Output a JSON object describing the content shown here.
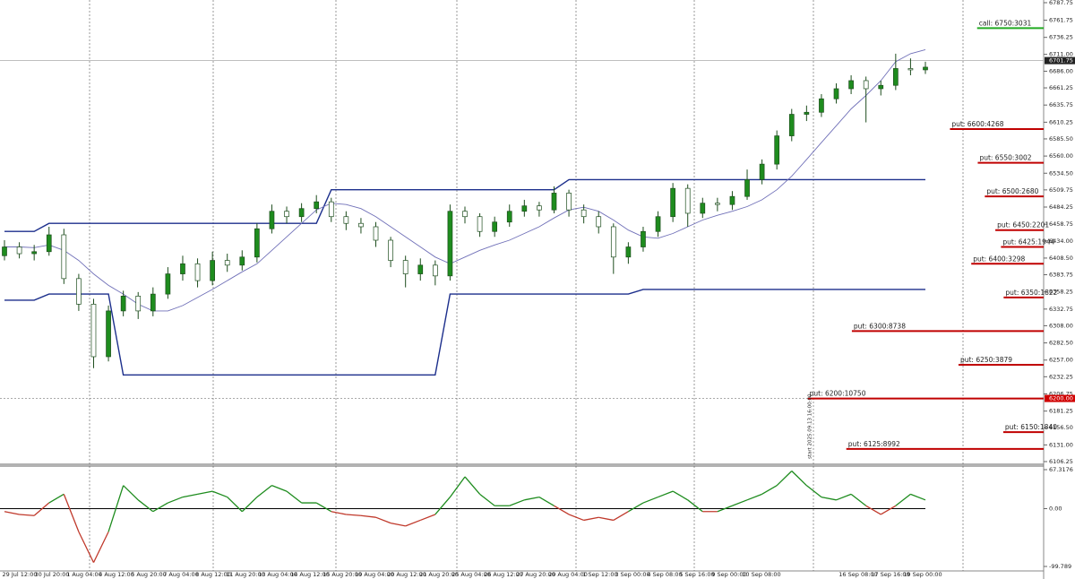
{
  "chart_data": [
    {
      "type": "candlestick",
      "open": [
        6412,
        6425,
        6415,
        6418,
        6443,
        6378,
        6340,
        6262,
        6330,
        6352,
        6330,
        6355,
        6385,
        6400,
        6375,
        6405,
        6398,
        6410,
        6452,
        6478,
        6470,
        6482,
        6492,
        6470,
        6460,
        6455,
        6435,
        6405,
        6385,
        6398,
        6382,
        6478,
        6470,
        6448,
        6462,
        6478,
        6486,
        6480,
        6505,
        6480,
        6470,
        6455,
        6410,
        6425,
        6448,
        6470,
        6512,
        6475,
        6490,
        6488,
        6500,
        6525,
        6548,
        6590,
        6622,
        6625,
        6645,
        6660,
        6672,
        6660,
        6665,
        6690,
        6688
      ],
      "high": [
        6435,
        6432,
        6428,
        6455,
        6452,
        6385,
        6348,
        6338,
        6360,
        6358,
        6365,
        6395,
        6412,
        6408,
        6418,
        6415,
        6420,
        6460,
        6488,
        6485,
        6490,
        6502,
        6498,
        6478,
        6468,
        6462,
        6440,
        6412,
        6408,
        6405,
        6488,
        6485,
        6475,
        6470,
        6488,
        6495,
        6492,
        6515,
        6510,
        6488,
        6478,
        6460,
        6432,
        6455,
        6478,
        6520,
        6518,
        6498,
        6498,
        6508,
        6540,
        6555,
        6598,
        6630,
        6635,
        6652,
        6668,
        6680,
        6678,
        6672,
        6712,
        6705,
        6700
      ],
      "low": [
        6405,
        6408,
        6405,
        6412,
        6370,
        6330,
        6245,
        6255,
        6322,
        6318,
        6322,
        6348,
        6375,
        6365,
        6368,
        6388,
        6390,
        6402,
        6445,
        6460,
        6462,
        6475,
        6462,
        6450,
        6445,
        6425,
        6395,
        6365,
        6375,
        6368,
        6375,
        6460,
        6440,
        6440,
        6455,
        6470,
        6470,
        6475,
        6470,
        6460,
        6445,
        6385,
        6400,
        6418,
        6440,
        6462,
        6455,
        6468,
        6478,
        6480,
        6495,
        6518,
        6540,
        6582,
        6612,
        6618,
        6638,
        6652,
        6610,
        6650,
        6658,
        6680,
        6682
      ],
      "close": [
        6425,
        6415,
        6418,
        6443,
        6378,
        6340,
        6262,
        6330,
        6352,
        6330,
        6355,
        6385,
        6400,
        6375,
        6405,
        6398,
        6410,
        6452,
        6478,
        6470,
        6482,
        6492,
        6470,
        6460,
        6455,
        6435,
        6405,
        6385,
        6398,
        6382,
        6478,
        6470,
        6448,
        6462,
        6478,
        6486,
        6480,
        6505,
        6480,
        6470,
        6455,
        6410,
        6425,
        6448,
        6470,
        6512,
        6475,
        6490,
        6488,
        6500,
        6525,
        6548,
        6590,
        6622,
        6625,
        6645,
        6660,
        6672,
        6660,
        6665,
        6690,
        6688,
        6692
      ],
      "up_color": "#1e8c1e",
      "down_color": "#ffffff",
      "outline_color": "#1d4d1d",
      "ma": {
        "color": "#7070b8",
        "values": [
          6425,
          6425,
          6424,
          6428,
          6420,
          6405,
          6385,
          6368,
          6355,
          6340,
          6330,
          6330,
          6338,
          6350,
          6362,
          6375,
          6388,
          6400,
          6420,
          6440,
          6460,
          6480,
          6490,
          6488,
          6482,
          6470,
          6455,
          6440,
          6425,
          6410,
          6400,
          6410,
          6420,
          6428,
          6435,
          6445,
          6455,
          6468,
          6480,
          6484,
          6478,
          6465,
          6450,
          6440,
          6438,
          6445,
          6455,
          6465,
          6472,
          6478,
          6485,
          6495,
          6510,
          6530,
          6555,
          6580,
          6605,
          6630,
          6650,
          6672,
          6700,
          6712,
          6718
        ]
      },
      "channel_upper": {
        "color": "#1c2f8c",
        "values": [
          6448,
          6448,
          6448,
          6460,
          6460,
          6460,
          6460,
          6460,
          6460,
          6460,
          6460,
          6460,
          6460,
          6460,
          6460,
          6460,
          6460,
          6460,
          6460,
          6460,
          6460,
          6460,
          6510,
          6510,
          6510,
          6510,
          6510,
          6510,
          6510,
          6510,
          6510,
          6510,
          6510,
          6510,
          6510,
          6510,
          6510,
          6510,
          6525,
          6525,
          6525,
          6525,
          6525,
          6525,
          6525,
          6525,
          6525,
          6525,
          6525,
          6525,
          6525,
          6525,
          6525,
          6525,
          6525,
          6525,
          6525,
          6525,
          6525,
          6525,
          6525,
          6525,
          6525
        ]
      },
      "channel_lower": {
        "color": "#1c2f8c",
        "values": [
          6346,
          6346,
          6346,
          6355,
          6355,
          6355,
          6355,
          6355,
          6235,
          6235,
          6235,
          6235,
          6235,
          6235,
          6235,
          6235,
          6235,
          6235,
          6235,
          6235,
          6235,
          6235,
          6235,
          6235,
          6235,
          6235,
          6235,
          6235,
          6235,
          6235,
          6355,
          6355,
          6355,
          6355,
          6355,
          6355,
          6355,
          6355,
          6355,
          6355,
          6355,
          6355,
          6355,
          6362,
          6362,
          6362,
          6362,
          6362,
          6362,
          6362,
          6362,
          6362,
          6362,
          6362,
          6362,
          6362,
          6362,
          6362,
          6362,
          6362,
          6362,
          6362,
          6362
        ]
      },
      "ylim": [
        6102.25,
        6791.75
      ],
      "yticks": [
        6787.75,
        6761.75,
        6736.25,
        {
          "value": 6711,
          "label": "6711.00"
        },
        {
          "value": 6686,
          "label": "6686.00"
        },
        6661.25,
        6635.75,
        6610.25,
        {
          "value": 6585.5,
          "label": "6585.50"
        },
        {
          "value": 6560,
          "label": "6560.00"
        },
        {
          "value": 6534.5,
          "label": "6534.50"
        },
        6509.75,
        6484.25,
        6458.75,
        {
          "value": 6434,
          "label": "6434.00"
        },
        {
          "value": 6408.5,
          "label": "6408.50"
        },
        6383.75,
        6358.25,
        6332.75,
        {
          "value": 6308,
          "label": "6308.00"
        },
        {
          "value": 6282.5,
          "label": "6282.50"
        },
        {
          "value": 6257,
          "label": "6257.00"
        },
        6232.25,
        6206.75,
        6181.25,
        {
          "value": 6156.5,
          "label": "6156.50"
        },
        {
          "value": 6131,
          "label": "6131.00"
        },
        6106.25
      ],
      "current_price": 6701.75,
      "marker_price": {
        "value": 6200,
        "label": "6200.00"
      },
      "levels": [
        {
          "label": "call: 6750:3031",
          "price": 6750,
          "volume": 3031,
          "color": "#22aa22"
        },
        {
          "label": "put: 6600:4268",
          "price": 6600,
          "volume": 4268,
          "color": "#c00000"
        },
        {
          "label": "put: 6550:3002",
          "price": 6550,
          "volume": 3002,
          "color": "#c00000"
        },
        {
          "label": "put: 6500:2680",
          "price": 6500,
          "volume": 2680,
          "color": "#c00000"
        },
        {
          "label": "put: 6450:2201",
          "price": 6450,
          "volume": 2201,
          "color": "#c00000"
        },
        {
          "label": "put: 6425:1944",
          "price": 6425,
          "volume": 1944,
          "color": "#c00000"
        },
        {
          "label": "put: 6400:3298",
          "price": 6400,
          "volume": 3298,
          "color": "#c00000"
        },
        {
          "label": "put: 6350:1822",
          "price": 6350,
          "volume": 1822,
          "color": "#c00000"
        },
        {
          "label": "put: 6300:8738",
          "price": 6300,
          "volume": 8738,
          "color": "#c00000"
        },
        {
          "label": "put: 6250:3879",
          "price": 6250,
          "volume": 3879,
          "color": "#c00000"
        },
        {
          "label": "put: 6200:10750",
          "price": 6200,
          "volume": 10750,
          "color": "#c00000"
        },
        {
          "label": "put: 6150:1840",
          "price": 6150,
          "volume": 1840,
          "color": "#c00000"
        },
        {
          "label": "put: 6125:8992",
          "price": 6125,
          "volume": 8992,
          "color": "#c00000"
        }
      ],
      "xlabels": [
        "29 Jul 12:00",
        "30 Jul 20:00",
        "1 Aug 04:00",
        "4 Aug 12:00",
        "5 Aug 20:00",
        "7 Aug 04:00",
        "8 Aug 12:00",
        "11 Aug 20:00",
        "13 Aug 04:00",
        "14 Aug 12:00",
        "15 Aug 20:00",
        "19 Aug 04:00",
        "20 Aug 12:00",
        "21 Aug 20:00",
        "25 Aug 04:00",
        "26 Aug 12:00",
        "27 Aug 20:00",
        "29 Aug 04:00",
        "1 Sep 12:00",
        "3 Sep 00:00",
        "4 Sep 08:00",
        "5 Sep 16:00",
        "9 Sep 00:00",
        "10 Sep 08:00",
        null,
        null,
        "16 Sep 08:00",
        "17 Sep 16:00",
        "19 Sep 00:00"
      ],
      "annotation": "start 2025.09.13 16:00:00"
    },
    {
      "type": "oscillator",
      "values": [
        -5,
        -10,
        -12,
        10,
        25,
        -40,
        -93,
        -40,
        40,
        15,
        -5,
        10,
        20,
        25,
        30,
        20,
        -5,
        20,
        40,
        30,
        10,
        10,
        -5,
        -10,
        -12,
        -15,
        -25,
        -30,
        -20,
        -10,
        20,
        55,
        25,
        5,
        5,
        15,
        20,
        5,
        -10,
        -20,
        -15,
        -20,
        -5,
        10,
        20,
        30,
        15,
        -5,
        -5,
        5,
        15,
        25,
        40,
        65,
        40,
        20,
        15,
        25,
        5,
        -10,
        5,
        25,
        15
      ],
      "up_color": "#1e8c1e",
      "down_color": "#c0392b",
      "ylim": [
        -99.789,
        67.3176
      ],
      "yticks": [
        67.3176,
        {
          "value": 0,
          "label": "0.00"
        },
        -99.789
      ]
    }
  ]
}
